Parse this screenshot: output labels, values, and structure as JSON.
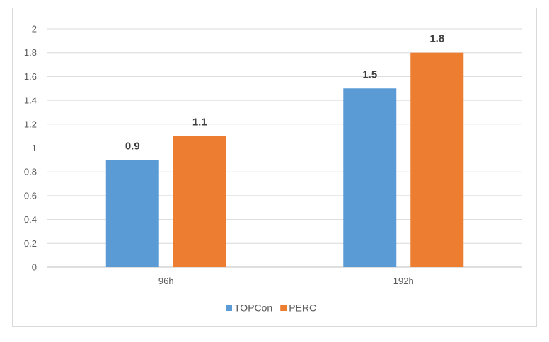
{
  "chart_data": {
    "type": "bar",
    "title": "",
    "xlabel": "",
    "ylabel": "",
    "categories": [
      "96h",
      "192h"
    ],
    "series": [
      {
        "name": "TOPCon",
        "values": [
          0.9,
          1.5
        ],
        "color": "#5b9bd5"
      },
      {
        "name": "PERC",
        "values": [
          1.1,
          1.8
        ],
        "color": "#ed7d31"
      }
    ],
    "ylim": [
      0,
      2
    ],
    "yticks": [
      "0",
      "0.2",
      "0.4",
      "0.6",
      "0.8",
      "1",
      "1.2",
      "1.4",
      "1.6",
      "1.8",
      "2"
    ],
    "data_labels": true,
    "grid": true,
    "legend_position": "bottom"
  }
}
